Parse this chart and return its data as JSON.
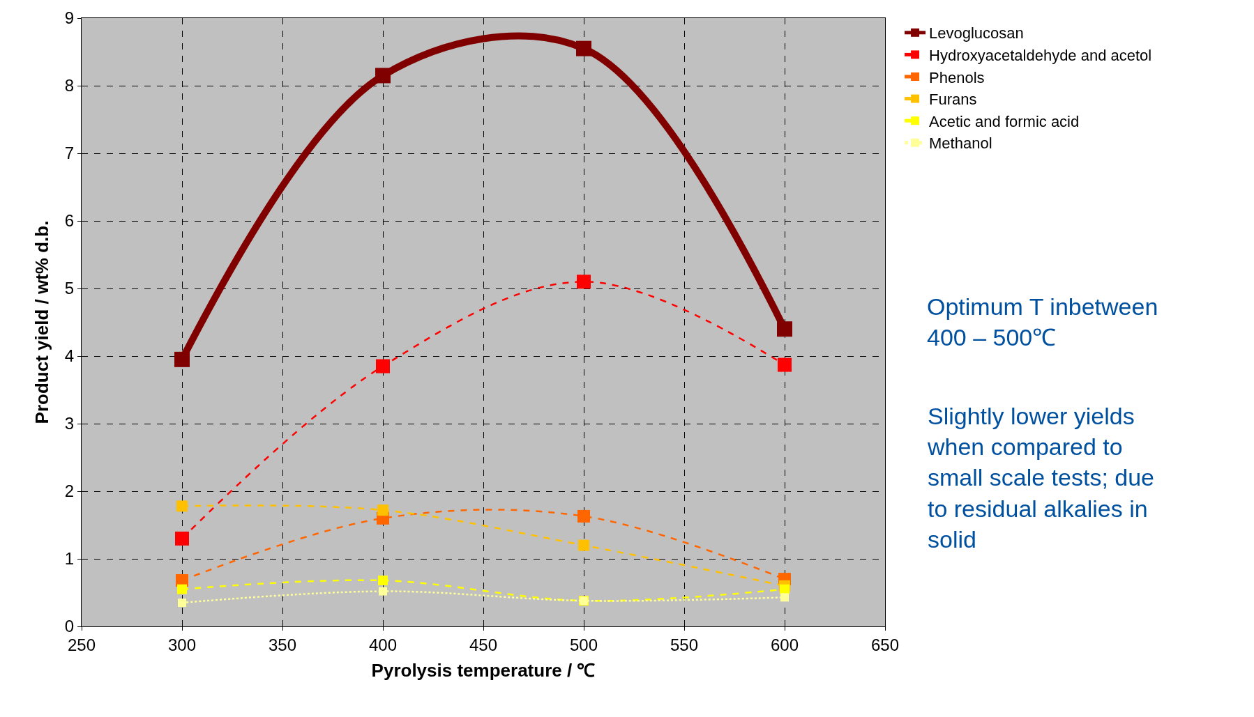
{
  "chart_data": {
    "type": "line",
    "xlabel": "Pyrolysis temperature / ℃",
    "ylabel": "Product yield / wt% d.b.",
    "x": [
      300,
      400,
      500,
      600
    ],
    "series": [
      {
        "name": "Levoglucosan",
        "color": "#800000",
        "line_style": "solid",
        "values": [
          3.95,
          8.15,
          8.55,
          4.4
        ]
      },
      {
        "name": "Hydroxyacetaldehyde and acetol",
        "color": "#ff0000",
        "line_style": "dashed",
        "values": [
          1.3,
          3.85,
          5.1,
          3.87
        ]
      },
      {
        "name": "Phenols",
        "color": "#ff6600",
        "line_style": "dashed",
        "values": [
          0.68,
          1.6,
          1.63,
          0.7
        ]
      },
      {
        "name": "Furans",
        "color": "#ffc000",
        "line_style": "dashed",
        "values": [
          1.78,
          1.72,
          1.2,
          0.6
        ]
      },
      {
        "name": "Acetic and formic acid",
        "color": "#ffff00",
        "line_style": "dashed",
        "values": [
          0.55,
          0.68,
          0.38,
          0.55
        ]
      },
      {
        "name": "Methanol",
        "color": "#ffff99",
        "line_style": "dotted",
        "values": [
          0.35,
          0.52,
          0.38,
          0.43
        ]
      }
    ],
    "xlim": [
      250,
      650
    ],
    "xticks": [
      250,
      300,
      350,
      400,
      450,
      500,
      550,
      600,
      650
    ],
    "ylim": [
      0,
      9
    ],
    "yticks": [
      0,
      1,
      2,
      3,
      4,
      5,
      6,
      7,
      8,
      9
    ],
    "grid": true,
    "legend": "top right",
    "marker": "square",
    "annotations": [
      "Optimum T inbetween\n400 – 500℃",
      "Slightly lower yields\nwhen compared to\nsmall scale tests; due\nto residual alkalies in\nsolid"
    ]
  }
}
